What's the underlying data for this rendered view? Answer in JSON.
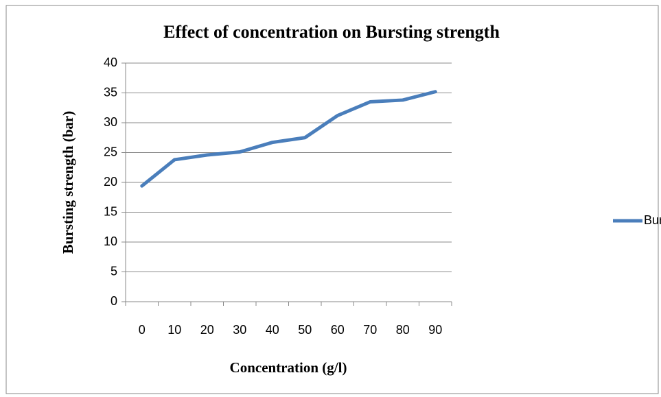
{
  "chart_data": {
    "type": "line",
    "title": "Effect of concentration on Bursting strength",
    "x_label": "Concentration (g/l)",
    "y_label": "Bursting strength (bar)",
    "categories": [
      "0",
      "10",
      "20",
      "30",
      "40",
      "50",
      "60",
      "70",
      "80",
      "90"
    ],
    "series": [
      {
        "name": "Bursting strength",
        "color": "#4a7ebb",
        "values": [
          19.4,
          23.8,
          24.6,
          25.1,
          26.7,
          27.5,
          31.2,
          33.5,
          33.8,
          35.2
        ]
      }
    ],
    "ylim": [
      0,
      40
    ],
    "yticks": [
      0,
      5,
      10,
      15,
      20,
      25,
      30,
      35,
      40
    ],
    "grid": true,
    "legend": "right"
  }
}
